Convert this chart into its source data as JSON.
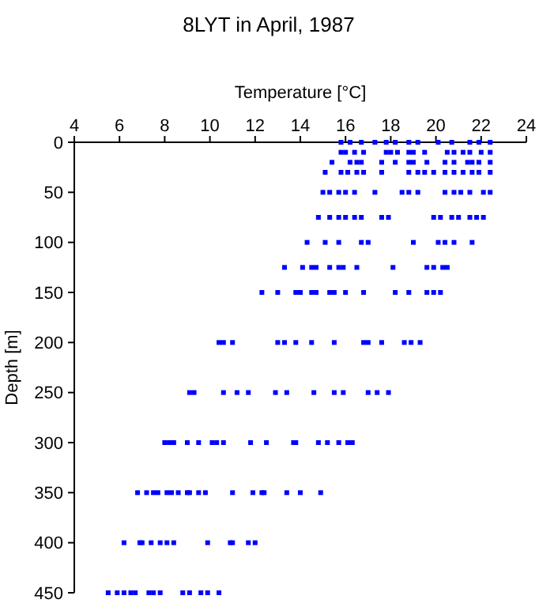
{
  "chart_data": {
    "type": "scatter",
    "title": "8LYT in April, 1987",
    "xlabel": "Temperature [°C]",
    "ylabel": "Depth [m]",
    "xlim": [
      4,
      24
    ],
    "xticks": [
      4,
      6,
      8,
      10,
      12,
      14,
      16,
      18,
      20,
      22,
      24
    ],
    "ylim": [
      450,
      0
    ],
    "yticks": [
      0,
      50,
      100,
      150,
      200,
      250,
      300,
      350,
      400,
      450
    ],
    "grid": false,
    "marker": "square",
    "series": [
      {
        "color": "#0000ff",
        "x": [
          15.8,
          16.2,
          16.7,
          17.3,
          17.8,
          18.2,
          18.8,
          19.2,
          20.1,
          20.7,
          21.5,
          21.9,
          22.4,
          15.8,
          16.0,
          16.4,
          16.8,
          17.8,
          18.0,
          18.3,
          18.8,
          19.0,
          19.5,
          20.5,
          20.8,
          21.2,
          21.5,
          22.0,
          22.4,
          15.4,
          16.2,
          16.5,
          16.7,
          17.6,
          18.2,
          18.8,
          19.0,
          19.6,
          20.4,
          20.8,
          21.4,
          21.6,
          21.9,
          22.4,
          15.1,
          15.8,
          16.1,
          16.5,
          16.8,
          17.6,
          18.8,
          19.2,
          19.5,
          19.9,
          20.4,
          20.8,
          21.2,
          21.6,
          21.9,
          22.4,
          15.0,
          15.3,
          15.7,
          16.0,
          16.4,
          17.3,
          18.5,
          18.8,
          19.2,
          20.4,
          20.8,
          21.1,
          21.5,
          22.1,
          22.4,
          14.8,
          15.3,
          15.7,
          16.0,
          16.4,
          16.7,
          17.6,
          17.9,
          19.9,
          20.2,
          20.7,
          21.0,
          21.5,
          21.8,
          22.1,
          14.3,
          15.1,
          15.7,
          16.7,
          17.0,
          19.0,
          20.1,
          20.4,
          20.8,
          21.6,
          13.3,
          14.1,
          14.5,
          14.7,
          15.3,
          15.7,
          15.9,
          16.5,
          18.1,
          19.6,
          19.9,
          20.3,
          20.5,
          12.3,
          13.0,
          13.8,
          14.0,
          14.5,
          14.7,
          15.3,
          15.5,
          16.0,
          16.8,
          18.2,
          18.8,
          19.6,
          19.9,
          20.2,
          10.4,
          10.6,
          11.0,
          13.0,
          13.3,
          13.8,
          14.5,
          15.5,
          16.8,
          17.0,
          17.6,
          18.6,
          18.9,
          19.3,
          9.1,
          9.3,
          10.6,
          11.2,
          11.7,
          12.9,
          13.4,
          14.6,
          15.5,
          15.9,
          17.0,
          17.4,
          17.9,
          8.0,
          8.2,
          8.4,
          9.0,
          9.5,
          10.1,
          10.3,
          10.6,
          11.8,
          12.5,
          13.7,
          13.8,
          14.8,
          15.2,
          15.7,
          16.1,
          16.3,
          6.8,
          7.2,
          7.5,
          7.7,
          8.1,
          8.3,
          8.6,
          9.0,
          9.1,
          9.5,
          9.8,
          11.0,
          11.9,
          12.3,
          12.4,
          13.4,
          14.0,
          14.9,
          6.2,
          6.9,
          7.0,
          7.4,
          7.8,
          8.1,
          8.4,
          9.9,
          10.9,
          11.0,
          11.7,
          12.0,
          5.5,
          5.9,
          6.2,
          6.5,
          6.7,
          7.3,
          7.5,
          7.8,
          8.8,
          9.1,
          9.6,
          9.9,
          10.4
        ],
        "values": [
          0,
          0,
          0,
          0,
          0,
          0,
          0,
          0,
          0,
          0,
          0,
          0,
          0,
          10,
          10,
          10,
          10,
          10,
          10,
          10,
          10,
          10,
          10,
          10,
          10,
          10,
          10,
          10,
          10,
          20,
          20,
          20,
          20,
          20,
          20,
          20,
          20,
          20,
          20,
          20,
          20,
          20,
          20,
          20,
          30,
          30,
          30,
          30,
          30,
          30,
          30,
          30,
          30,
          30,
          30,
          30,
          30,
          30,
          30,
          30,
          50,
          50,
          50,
          50,
          50,
          50,
          50,
          50,
          50,
          50,
          50,
          50,
          50,
          50,
          50,
          75,
          75,
          75,
          75,
          75,
          75,
          75,
          75,
          75,
          75,
          75,
          75,
          75,
          75,
          75,
          100,
          100,
          100,
          100,
          100,
          100,
          100,
          100,
          100,
          100,
          125,
          125,
          125,
          125,
          125,
          125,
          125,
          125,
          125,
          125,
          125,
          125,
          125,
          150,
          150,
          150,
          150,
          150,
          150,
          150,
          150,
          150,
          150,
          150,
          150,
          150,
          150,
          150,
          200,
          200,
          200,
          200,
          200,
          200,
          200,
          200,
          200,
          200,
          200,
          200,
          200,
          200,
          250,
          250,
          250,
          250,
          250,
          250,
          250,
          250,
          250,
          250,
          250,
          250,
          250,
          300,
          300,
          300,
          300,
          300,
          300,
          300,
          300,
          300,
          300,
          300,
          300,
          300,
          300,
          300,
          300,
          300,
          350,
          350,
          350,
          350,
          350,
          350,
          350,
          350,
          350,
          350,
          350,
          350,
          350,
          350,
          350,
          350,
          350,
          350,
          400,
          400,
          400,
          400,
          400,
          400,
          400,
          400,
          400,
          400,
          400,
          400,
          450,
          450,
          450,
          450,
          450,
          450,
          450,
          450,
          450,
          450,
          450,
          450,
          450
        ]
      }
    ]
  }
}
